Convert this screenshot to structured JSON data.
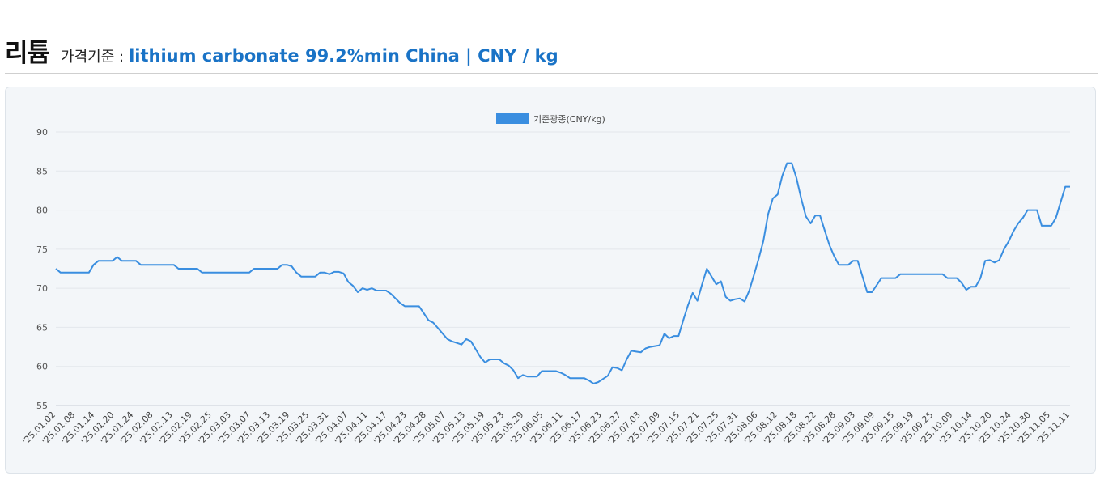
{
  "header": {
    "title": "리튬",
    "basis_label": "가격기준 :",
    "basis_value": "lithium carbonate 99.2%min China | CNY / kg"
  },
  "chart_data": {
    "type": "line",
    "title": "",
    "xlabel": "",
    "ylabel": "",
    "ylim": [
      55,
      90
    ],
    "yticks": [
      55,
      60,
      65,
      70,
      75,
      80,
      85,
      90
    ],
    "grid": true,
    "legend_position": "top-center",
    "x_tick_labels": [
      "'25.01.02",
      "'25.01.08",
      "'25.01.14",
      "'25.01.20",
      "'25.01.24",
      "'25.02.08",
      "'25.02.13",
      "'25.02.19",
      "'25.02.25",
      "'25.03.03",
      "'25.03.07",
      "'25.03.13",
      "'25.03.19",
      "'25.03.25",
      "'25.03.31",
      "'25.04.07",
      "'25.04.11",
      "'25.04.17",
      "'25.04.23",
      "'25.04.28",
      "'25.05.07",
      "'25.05.13",
      "'25.05.19",
      "'25.05.23",
      "'25.05.29",
      "'25.06.05",
      "'25.06.11",
      "'25.06.17",
      "'25.06.23",
      "'25.06.27",
      "'25.07.03",
      "'25.07.09",
      "'25.07.15",
      "'25.07.21",
      "'25.07.25",
      "'25.07.31",
      "'25.08.06",
      "'25.08.12",
      "'25.08.18",
      "'25.08.22",
      "'25.08.28",
      "'25.09.03",
      "'25.09.09",
      "'25.09.15",
      "'25.09.19",
      "'25.09.25",
      "'25.10.09",
      "'25.10.14",
      "'25.10.20",
      "'25.10.24",
      "'25.10.30",
      "'25.11.05",
      "'25.11.11"
    ],
    "series": [
      {
        "name": "기준광종(CNY/kg)",
        "color": "#3a8ee0",
        "values": [
          72.5,
          72,
          72,
          72,
          72,
          72,
          72,
          72,
          73,
          73.5,
          73.5,
          73.5,
          73.5,
          74,
          73.5,
          73.5,
          73.5,
          73.5,
          73,
          73,
          73,
          73,
          73,
          73,
          73,
          73,
          72.5,
          72.5,
          72.5,
          72.5,
          72.5,
          72,
          72,
          72,
          72,
          72,
          72,
          72,
          72,
          72,
          72,
          72,
          72.5,
          72.5,
          72.5,
          72.5,
          72.5,
          72.5,
          73,
          73,
          72.8,
          72,
          71.5,
          71.5,
          71.5,
          71.5,
          72,
          72,
          71.8,
          72.1,
          72.1,
          71.9,
          70.8,
          70.3,
          69.5,
          70,
          69.8,
          70,
          69.7,
          69.7,
          69.7,
          69.3,
          68.7,
          68.1,
          67.7,
          67.7,
          67.7,
          67.7,
          66.8,
          65.9,
          65.6,
          64.9,
          64.2,
          63.5,
          63.2,
          63,
          62.8,
          63.5,
          63.2,
          62.2,
          61.2,
          60.5,
          60.9,
          60.9,
          60.9,
          60.4,
          60.1,
          59.5,
          58.5,
          58.9,
          58.7,
          58.7,
          58.7,
          59.4,
          59.4,
          59.4,
          59.4,
          59.2,
          58.9,
          58.5,
          58.5,
          58.5,
          58.5,
          58.2,
          57.8,
          58,
          58.4,
          58.8,
          59.9,
          59.8,
          59.5,
          60.9,
          62,
          61.9,
          61.8,
          62.3,
          62.5,
          62.6,
          62.7,
          64.2,
          63.6,
          63.9,
          63.9,
          65.9,
          67.8,
          69.4,
          68.4,
          70.5,
          72.5,
          71.5,
          70.5,
          70.9,
          68.9,
          68.4,
          68.6,
          68.7,
          68.3,
          69.7,
          71.7,
          73.8,
          76.1,
          79.5,
          81.5,
          82,
          84.4,
          86,
          86,
          84.1,
          81.5,
          79.2,
          78.3,
          79.3,
          79.3,
          77.4,
          75.5,
          74.1,
          73,
          73,
          73,
          73.5,
          73.5,
          71.5,
          69.5,
          69.5,
          70.4,
          71.3,
          71.3,
          71.3,
          71.3,
          71.8,
          71.8,
          71.8,
          71.8,
          71.8,
          71.8,
          71.8,
          71.8,
          71.8,
          71.8,
          71.3,
          71.3,
          71.3,
          70.7,
          69.8,
          70.2,
          70.2,
          71.3,
          73.5,
          73.6,
          73.3,
          73.6,
          75,
          76,
          77.3,
          78.3,
          79,
          80,
          80,
          80,
          78,
          78,
          78,
          79,
          81,
          83,
          83
        ]
      }
    ]
  }
}
